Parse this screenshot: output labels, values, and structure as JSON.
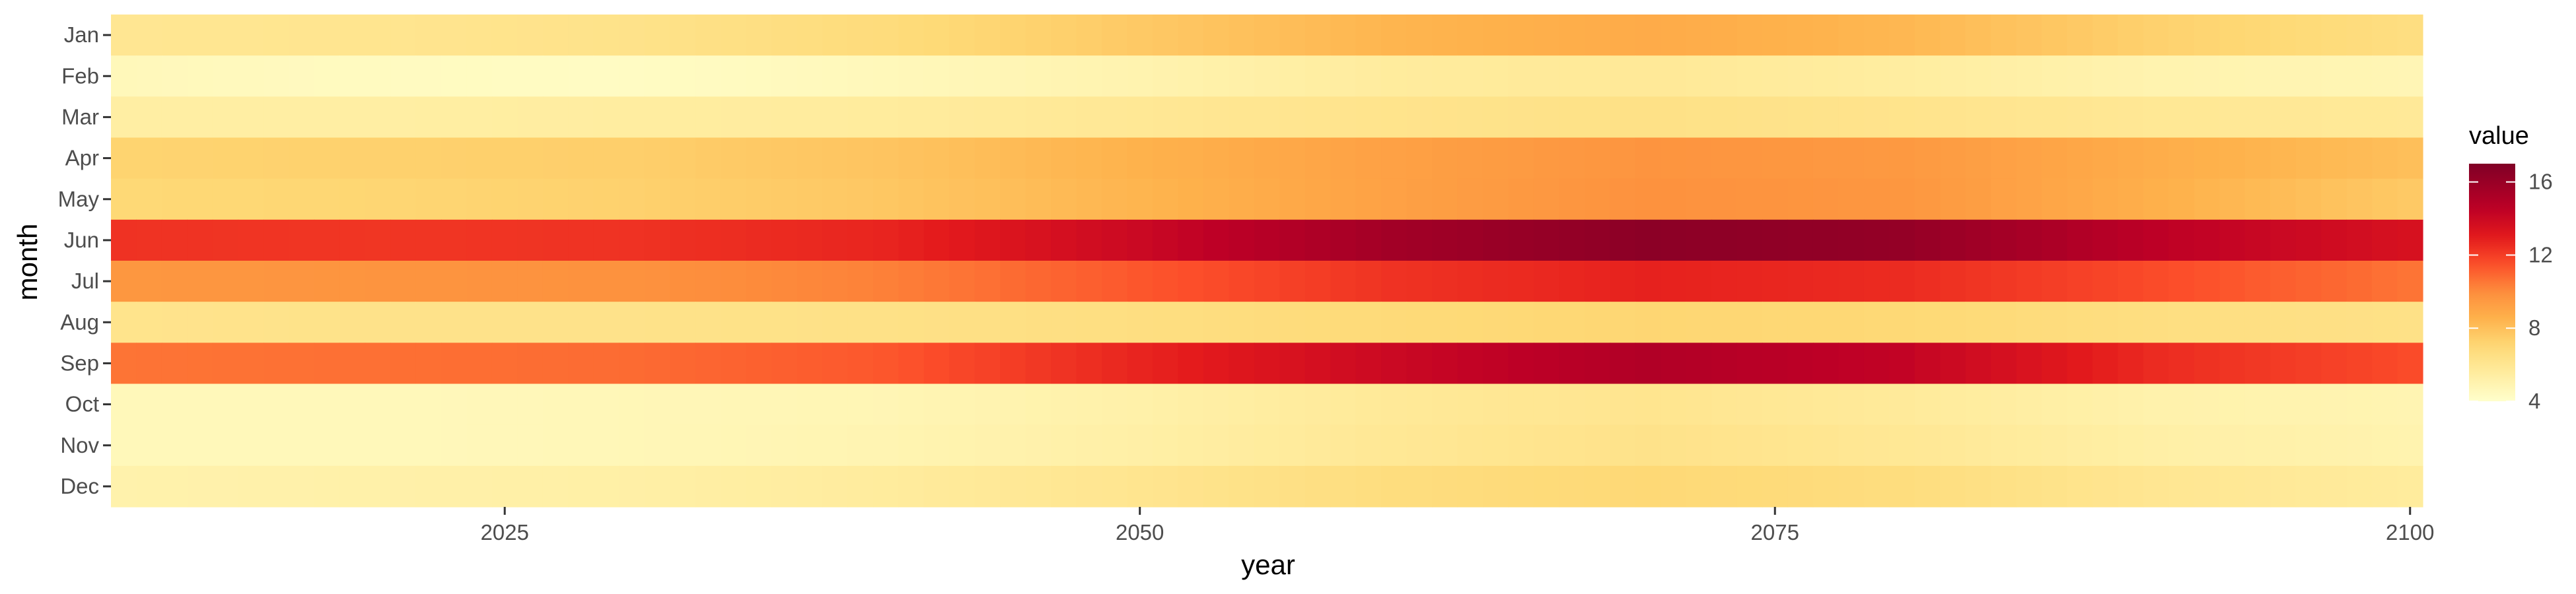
{
  "chart_data": {
    "type": "heatmap",
    "title": "",
    "xlabel": "year",
    "ylabel": "month",
    "xlim": [
      2010,
      2100
    ],
    "x_ticks": [
      2025,
      2050,
      2075,
      2100
    ],
    "y_categories": [
      "Jan",
      "Feb",
      "Mar",
      "Apr",
      "May",
      "Jun",
      "Jul",
      "Aug",
      "Sep",
      "Oct",
      "Nov",
      "Dec"
    ],
    "grid": false,
    "colormap": "YlOrRd",
    "color_range": [
      4,
      17
    ],
    "legend": {
      "title": "value",
      "ticks": [
        4,
        8,
        12,
        16
      ],
      "placement": "right"
    },
    "x_years": [
      2010,
      2020,
      2030,
      2040,
      2050,
      2060,
      2070,
      2080,
      2090,
      2100
    ],
    "rows": [
      {
        "month": "Jan",
        "values": [
          6.0,
          6.1,
          6.3,
          6.8,
          7.6,
          8.4,
          8.8,
          8.3,
          7.3,
          6.6
        ]
      },
      {
        "month": "Feb",
        "values": [
          4.6,
          4.4,
          4.3,
          4.6,
          5.0,
          5.6,
          5.8,
          5.5,
          5.0,
          4.8
        ]
      },
      {
        "month": "Mar",
        "values": [
          5.4,
          5.4,
          5.5,
          5.6,
          5.9,
          6.2,
          6.4,
          6.2,
          5.9,
          5.8
        ]
      },
      {
        "month": "Apr",
        "values": [
          7.2,
          7.3,
          7.4,
          7.8,
          8.5,
          9.2,
          9.7,
          9.5,
          8.7,
          8.0
        ]
      },
      {
        "month": "May",
        "values": [
          7.0,
          7.1,
          7.3,
          7.7,
          8.4,
          9.2,
          9.8,
          9.6,
          8.6,
          7.6
        ]
      },
      {
        "month": "Jun",
        "values": [
          12.3,
          12.2,
          12.3,
          12.7,
          14.0,
          15.6,
          16.5,
          16.2,
          14.5,
          13.5
        ]
      },
      {
        "month": "Jul",
        "values": [
          9.6,
          9.7,
          9.8,
          10.3,
          11.3,
          12.3,
          12.8,
          12.5,
          11.6,
          10.6
        ]
      },
      {
        "month": "Aug",
        "values": [
          6.2,
          6.3,
          6.3,
          6.4,
          6.6,
          6.9,
          7.1,
          7.0,
          6.6,
          6.4
        ]
      },
      {
        "month": "Sep",
        "values": [
          10.6,
          10.7,
          10.8,
          11.3,
          12.7,
          14.0,
          15.0,
          14.3,
          12.5,
          11.6
        ]
      },
      {
        "month": "Oct",
        "values": [
          4.6,
          4.6,
          4.7,
          4.8,
          5.2,
          5.8,
          6.1,
          5.7,
          5.1,
          4.9
        ]
      },
      {
        "month": "Nov",
        "values": [
          4.6,
          4.6,
          4.7,
          4.9,
          5.3,
          5.9,
          6.3,
          5.9,
          5.3,
          5.0
        ]
      },
      {
        "month": "Dec",
        "values": [
          5.1,
          5.2,
          5.3,
          5.6,
          6.1,
          6.7,
          7.0,
          6.7,
          6.0,
          5.6
        ]
      }
    ]
  }
}
